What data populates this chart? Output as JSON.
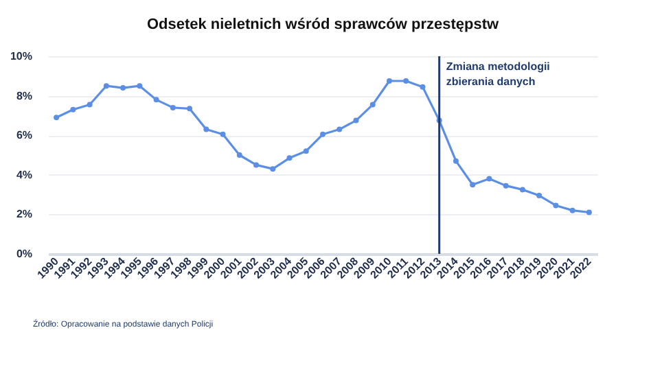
{
  "chart_data": {
    "type": "line",
    "title": "Odsetek nieletnich wśród sprawców przestępstw",
    "categories": [
      "1990",
      "1991",
      "1992",
      "1993",
      "1994",
      "1995",
      "1996",
      "1997",
      "1998",
      "1999",
      "2000",
      "2001",
      "2002",
      "2003",
      "2004",
      "2005",
      "2006",
      "2007",
      "2008",
      "2009",
      "2010",
      "2011",
      "2012",
      "2013",
      "2014",
      "2015",
      "2016",
      "2017",
      "2018",
      "2019",
      "2020",
      "2021",
      "2022"
    ],
    "series": [
      {
        "color": "#5b8fe6",
        "values": [
          6.9,
          7.3,
          7.55,
          8.5,
          8.4,
          8.5,
          7.8,
          7.4,
          7.35,
          6.3,
          6.05,
          5.0,
          4.5,
          4.3,
          4.85,
          5.2,
          6.05,
          6.3,
          6.75,
          7.55,
          8.75,
          8.75,
          8.45,
          6.75,
          4.7,
          3.5,
          3.8,
          3.45,
          3.25,
          2.95,
          2.45,
          2.2,
          2.1
        ]
      }
    ],
    "ylim": [
      0,
      10
    ],
    "yticks": [
      {
        "value": 0,
        "label": "0%"
      },
      {
        "value": 2,
        "label": "2%"
      },
      {
        "value": 4,
        "label": "4%"
      },
      {
        "value": 6,
        "label": "6%"
      },
      {
        "value": 8,
        "label": "8%"
      },
      {
        "value": 10,
        "label": "10%"
      }
    ],
    "ref_lines": [
      {
        "axis": "x",
        "value": "2013",
        "label": "Zmiana metodologii\nzbierania danych",
        "color": "#1f3a6e"
      }
    ],
    "grid": "y",
    "marker": "circle",
    "line_style": "solid",
    "annotations": [
      "Źródło: Opracowanie na podstawie danych Policji"
    ]
  }
}
